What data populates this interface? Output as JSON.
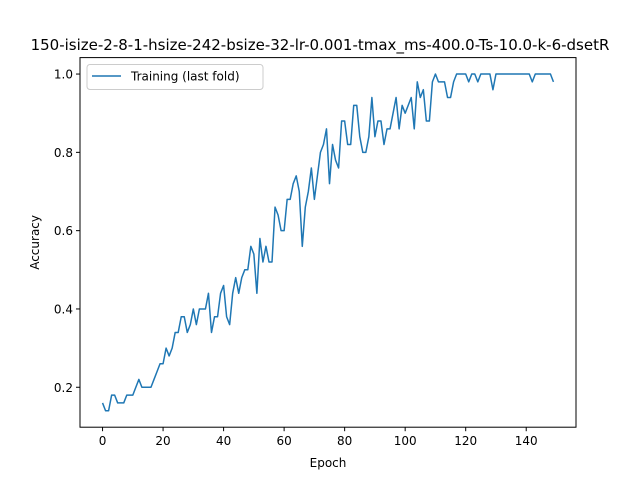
{
  "chart_data": {
    "type": "line",
    "title": "150-isize-2-8-1-hsize-242-bsize-32-lr-0.001-tmax_ms-400.0-Ts-10.0-k-6-dsetR",
    "xlabel": "Epoch",
    "ylabel": "Accuracy",
    "xlim": [
      -7.45,
      156.45
    ],
    "ylim": [
      0.098,
      1.042
    ],
    "xticks": [
      0,
      20,
      40,
      60,
      80,
      100,
      120,
      140
    ],
    "yticks": [
      0.2,
      0.4,
      0.6,
      0.8,
      1.0
    ],
    "xtick_labels": [
      "0",
      "20",
      "40",
      "60",
      "80",
      "100",
      "120",
      "140"
    ],
    "ytick_labels": [
      "0.2",
      "0.4",
      "0.6",
      "0.8",
      "1.0"
    ],
    "grid": false,
    "legend_position": "upper-left",
    "series": [
      {
        "name": "Training (last fold)",
        "color": "#1f77b4",
        "values": [
          0.16,
          0.14,
          0.14,
          0.18,
          0.18,
          0.16,
          0.16,
          0.16,
          0.18,
          0.18,
          0.18,
          0.2,
          0.22,
          0.2,
          0.2,
          0.2,
          0.2,
          0.22,
          0.24,
          0.26,
          0.26,
          0.3,
          0.28,
          0.3,
          0.34,
          0.34,
          0.38,
          0.38,
          0.34,
          0.36,
          0.4,
          0.36,
          0.4,
          0.4,
          0.4,
          0.44,
          0.34,
          0.38,
          0.38,
          0.44,
          0.46,
          0.38,
          0.36,
          0.44,
          0.48,
          0.44,
          0.48,
          0.5,
          0.5,
          0.56,
          0.54,
          0.44,
          0.58,
          0.52,
          0.56,
          0.52,
          0.52,
          0.66,
          0.64,
          0.6,
          0.6,
          0.68,
          0.68,
          0.72,
          0.74,
          0.7,
          0.56,
          0.66,
          0.7,
          0.76,
          0.68,
          0.74,
          0.8,
          0.82,
          0.86,
          0.72,
          0.82,
          0.78,
          0.76,
          0.88,
          0.88,
          0.82,
          0.82,
          0.92,
          0.92,
          0.84,
          0.8,
          0.8,
          0.84,
          0.94,
          0.84,
          0.88,
          0.88,
          0.82,
          0.86,
          0.86,
          0.9,
          0.94,
          0.86,
          0.92,
          0.9,
          0.92,
          0.94,
          0.86,
          0.98,
          0.94,
          0.96,
          0.88,
          0.88,
          0.98,
          1.0,
          0.98,
          0.98,
          0.98,
          0.94,
          0.94,
          0.98,
          1.0,
          1.0,
          1.0,
          1.0,
          0.98,
          1.0,
          1.0,
          0.98,
          1.0,
          1.0,
          1.0,
          1.0,
          0.96,
          1.0,
          1.0,
          1.0,
          1.0,
          1.0,
          1.0,
          1.0,
          1.0,
          1.0,
          1.0,
          1.0,
          1.0,
          0.98,
          1.0,
          1.0,
          1.0,
          1.0,
          1.0,
          1.0,
          0.98
        ]
      }
    ]
  }
}
